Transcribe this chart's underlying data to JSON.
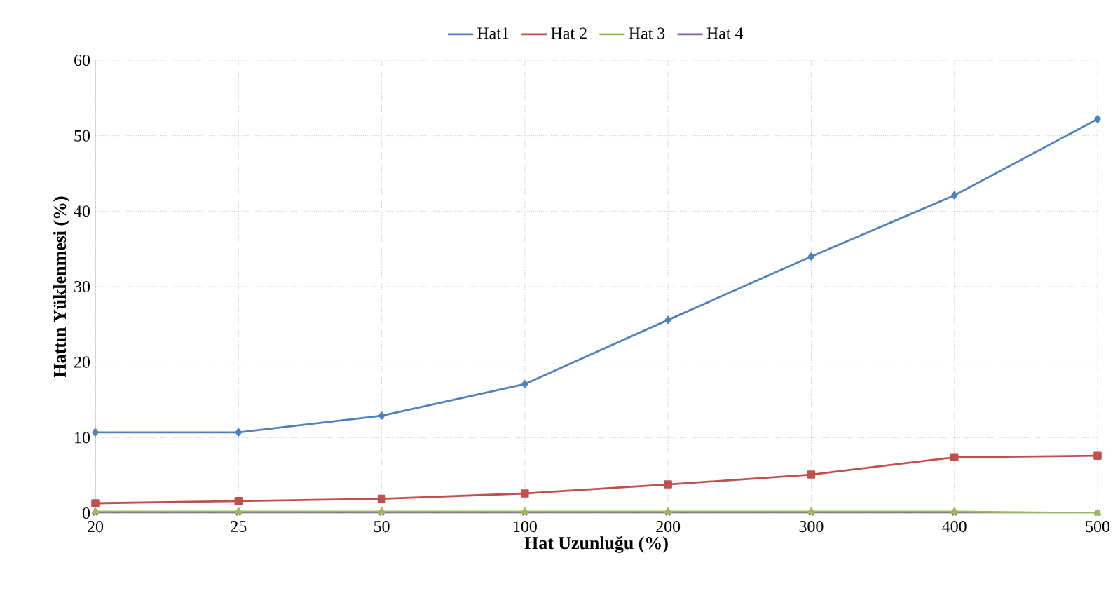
{
  "chart_data": {
    "type": "line",
    "xlabel": "Hat Uzunluğu  (%)",
    "ylabel": "Hattın Yüklenmesi (%)",
    "categories": [
      "20",
      "25",
      "50",
      "100",
      "200",
      "300",
      "400",
      "500"
    ],
    "series": [
      {
        "name": "Hat1",
        "color": "#4f81bd",
        "marker": "diamond",
        "values": [
          10.7,
          10.7,
          12.9,
          17.1,
          25.6,
          34,
          42.1,
          52.2
        ]
      },
      {
        "name": "Hat 2",
        "color": "#c0504d",
        "marker": "square",
        "values": [
          1.3,
          1.6,
          1.9,
          2.6,
          3.8,
          5.1,
          7.4,
          7.6
        ]
      },
      {
        "name": "Hat 3",
        "color": "#9bbb59",
        "marker": "triangle",
        "values": [
          0.2,
          0.2,
          0.2,
          0.2,
          0.2,
          0.2,
          0.2,
          0
        ]
      },
      {
        "name": "Hat 4",
        "color": "#8064a2",
        "marker": "cross",
        "values": [
          0,
          0,
          0,
          0,
          0,
          0,
          0,
          0
        ]
      }
    ],
    "ylim": [
      0,
      60
    ],
    "yticks": [
      0,
      10,
      20,
      30,
      40,
      50,
      60
    ],
    "grid": true,
    "legend": "top",
    "line_style": "solid"
  }
}
